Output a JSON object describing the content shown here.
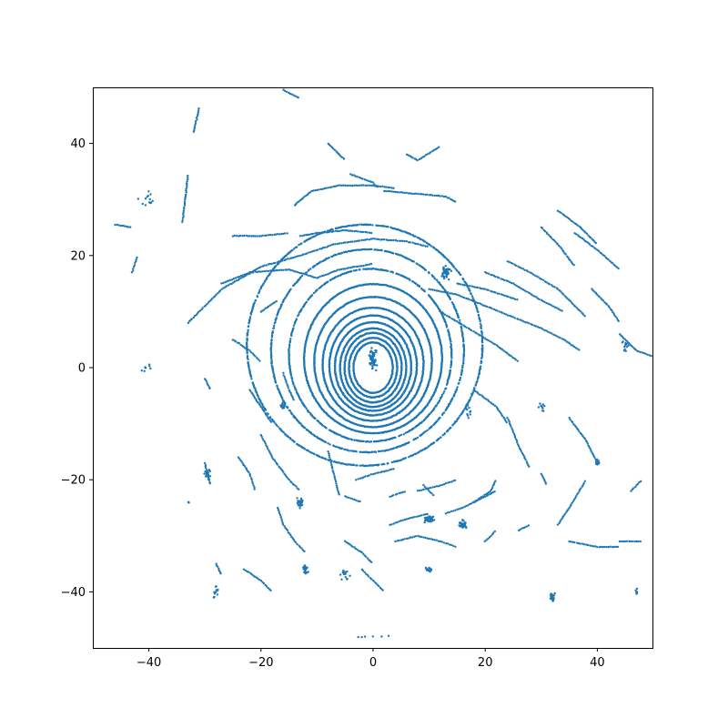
{
  "chart_data": {
    "type": "scatter",
    "title": "",
    "xlabel": "",
    "ylabel": "",
    "xlim": [
      -50,
      50
    ],
    "ylim": [
      -50,
      50
    ],
    "xticks": [
      -40,
      -20,
      0,
      20,
      40
    ],
    "yticks": [
      -40,
      -20,
      0,
      20,
      40
    ],
    "xtick_labels": [
      "−40",
      "−20",
      "0",
      "20",
      "40"
    ],
    "ytick_labels": [
      "−40",
      "−20",
      "0",
      "20",
      "40"
    ],
    "grid": false,
    "legend": "none",
    "marker_color": "#1f77b4",
    "series": [
      {
        "rings": [
          {
            "cx": 0,
            "cy": 0,
            "rx": 3.5,
            "ry": 4.5
          },
          {
            "cx": 0,
            "cy": 0,
            "rx": 4.3,
            "ry": 5.3
          },
          {
            "cx": 0,
            "cy": 0,
            "rx": 5.1,
            "ry": 6.2
          },
          {
            "cx": 0,
            "cy": 0,
            "rx": 5.9,
            "ry": 7.0
          },
          {
            "cx": 0,
            "cy": 0.2,
            "rx": 6.8,
            "ry": 7.9
          },
          {
            "cx": 0,
            "cy": 0.4,
            "rx": 7.8,
            "ry": 8.9
          },
          {
            "cx": 0,
            "cy": 0.6,
            "rx": 9.0,
            "ry": 10.1
          },
          {
            "cx": 0,
            "cy": 1.0,
            "rx": 10.5,
            "ry": 11.6
          },
          {
            "cx": 0,
            "cy": 1.6,
            "rx": 12.3,
            "ry": 13.3
          },
          {
            "cx": -0.5,
            "cy": 2.2,
            "rx": 14.5,
            "ry": 15.4
          },
          {
            "cx": -1.0,
            "cy": 3.0,
            "rx": 17.2,
            "ry": 18.1
          },
          {
            "cx": -1.5,
            "cy": 4.0,
            "rx": 21.0,
            "ry": 21.5
          }
        ],
        "segments": [
          [
            [
              -33,
              8
            ],
            [
              -27,
              14
            ],
            [
              -20,
              18
            ],
            [
              -13,
              20
            ],
            [
              -7,
              22
            ],
            [
              0,
              23
            ],
            [
              6,
              22.5
            ],
            [
              10,
              21.5
            ]
          ],
          [
            [
              -27,
              15
            ],
            [
              -22,
              17
            ],
            [
              -15,
              17.5
            ],
            [
              -10,
              16
            ],
            [
              -6,
              17.5
            ],
            [
              0,
              18.5
            ]
          ],
          [
            [
              -13,
              23.5
            ],
            [
              -10,
              24
            ],
            [
              -5,
              24.5
            ],
            [
              0,
              24
            ]
          ],
          [
            [
              -25,
              23.5
            ],
            [
              -20,
              23.5
            ],
            [
              -15,
              24
            ]
          ],
          [
            [
              -14,
              29
            ],
            [
              -11,
              31.5
            ],
            [
              -6,
              32.5
            ],
            [
              0,
              32.5
            ],
            [
              4,
              32
            ]
          ],
          [
            [
              2,
              31.5
            ],
            [
              8,
              31
            ],
            [
              13,
              30.5
            ],
            [
              15,
              29.5
            ]
          ],
          [
            [
              -4,
              34.5
            ],
            [
              0,
              33
            ],
            [
              1,
              32
            ]
          ],
          [
            [
              -8,
              40
            ],
            [
              -5,
              37
            ]
          ],
          [
            [
              -16,
              49.5
            ],
            [
              -13,
              48
            ]
          ],
          [
            [
              6,
              38
            ],
            [
              8,
              37
            ],
            [
              12,
              39.5
            ]
          ],
          [
            [
              10,
              14
            ],
            [
              15,
              13
            ],
            [
              20,
              11
            ],
            [
              25,
              9
            ],
            [
              30,
              7
            ],
            [
              34,
              5
            ],
            [
              37,
              3
            ]
          ],
          [
            [
              12,
              10
            ],
            [
              17,
              7
            ],
            [
              22,
              4
            ],
            [
              26,
              1
            ]
          ],
          [
            [
              15,
              15
            ],
            [
              20,
              14
            ],
            [
              26,
              12
            ]
          ],
          [
            [
              20,
              17
            ],
            [
              25,
              15
            ],
            [
              30,
              12
            ],
            [
              34,
              10
            ]
          ],
          [
            [
              24,
              19
            ],
            [
              28,
              17
            ],
            [
              33,
              14
            ],
            [
              38,
              9
            ]
          ],
          [
            [
              30,
              25
            ],
            [
              33,
              22
            ],
            [
              36,
              18
            ]
          ],
          [
            [
              33,
              28
            ],
            [
              37,
              25
            ],
            [
              40,
              22
            ]
          ],
          [
            [
              36,
              24
            ],
            [
              40,
              21
            ],
            [
              44,
              17.5
            ]
          ],
          [
            [
              39,
              14
            ],
            [
              42,
              11
            ],
            [
              44,
              8
            ]
          ],
          [
            [
              44,
              6
            ],
            [
              47,
              3
            ],
            [
              50,
              2
            ]
          ],
          [
            [
              -43,
              17
            ],
            [
              -42,
              20
            ]
          ],
          [
            [
              -32,
              42
            ],
            [
              -31,
              46.5
            ]
          ],
          [
            [
              -34,
              26
            ],
            [
              -33,
              34.5
            ]
          ],
          [
            [
              -46,
              25.5
            ],
            [
              -43,
              25
            ]
          ],
          [
            [
              -20,
              10
            ],
            [
              -17,
              12
            ]
          ],
          [
            [
              -25,
              5
            ],
            [
              -22,
              3
            ],
            [
              -20,
              1
            ]
          ],
          [
            [
              -22,
              -4
            ],
            [
              -20,
              -7
            ],
            [
              -18,
              -10
            ]
          ],
          [
            [
              -20,
              -12
            ],
            [
              -18,
              -16
            ],
            [
              -15,
              -20
            ],
            [
              -13,
              -22
            ]
          ],
          [
            [
              -24,
              -16
            ],
            [
              -22,
              -19
            ],
            [
              -21,
              -22
            ]
          ],
          [
            [
              -30,
              -17
            ],
            [
              -29,
              -21
            ]
          ],
          [
            [
              -28,
              -35
            ],
            [
              -27,
              -37
            ]
          ],
          [
            [
              -23,
              -36
            ],
            [
              -20,
              -38
            ],
            [
              -18,
              -40
            ]
          ],
          [
            [
              -17,
              -25
            ],
            [
              -16,
              -28
            ],
            [
              -14,
              -31
            ]
          ],
          [
            [
              -14,
              -31
            ],
            [
              -12,
              -33
            ]
          ],
          [
            [
              -8,
              -15
            ],
            [
              -7,
              -19
            ],
            [
              -6,
              -23
            ]
          ],
          [
            [
              -3,
              -20
            ],
            [
              0,
              -19
            ],
            [
              4,
              -18
            ]
          ],
          [
            [
              -5,
              -23
            ],
            [
              -2,
              -24
            ]
          ],
          [
            [
              3,
              -23
            ],
            [
              6,
              -22
            ]
          ],
          [
            [
              3,
              -28
            ],
            [
              6,
              -27
            ],
            [
              10,
              -26
            ]
          ],
          [
            [
              4,
              -31
            ],
            [
              8,
              -30
            ],
            [
              12,
              -31
            ],
            [
              15,
              -32
            ]
          ],
          [
            [
              8,
              -22
            ],
            [
              12,
              -21
            ],
            [
              15,
              -20
            ]
          ],
          [
            [
              13,
              -26
            ],
            [
              16,
              -25
            ],
            [
              20,
              -23
            ],
            [
              22,
              -22
            ]
          ],
          [
            [
              18,
              -24
            ],
            [
              21,
              -22
            ],
            [
              22,
              -20
            ]
          ],
          [
            [
              20,
              -31
            ],
            [
              22,
              -29
            ]
          ],
          [
            [
              26,
              -29
            ],
            [
              28,
              -28
            ]
          ],
          [
            [
              33,
              -28
            ],
            [
              35,
              -25
            ],
            [
              38,
              -20
            ]
          ],
          [
            [
              35,
              -31
            ],
            [
              40,
              -32
            ],
            [
              44,
              -32
            ]
          ],
          [
            [
              44,
              -31
            ],
            [
              48,
              -31
            ]
          ],
          [
            [
              24,
              -9
            ],
            [
              26,
              -14
            ],
            [
              28,
              -18
            ]
          ],
          [
            [
              30,
              -19
            ],
            [
              31,
              -21
            ]
          ],
          [
            [
              35,
              -9
            ],
            [
              38,
              -13
            ],
            [
              40,
              -17
            ]
          ],
          [
            [
              46,
              -22
            ],
            [
              48,
              -20
            ]
          ],
          [
            [
              18,
              -4
            ],
            [
              22,
              -7
            ],
            [
              24,
              -10
            ]
          ],
          [
            [
              9,
              -21
            ],
            [
              11,
              -23
            ]
          ],
          [
            [
              -5,
              -31
            ],
            [
              -2,
              -33
            ],
            [
              0,
              -35
            ]
          ],
          [
            [
              -2,
              -36
            ],
            [
              0,
              -38
            ],
            [
              2,
              -40
            ]
          ],
          [
            [
              -30,
              -2
            ],
            [
              -29,
              -4
            ]
          ],
          [
            [
              -16,
              -1
            ],
            [
              -15,
              -4
            ],
            [
              -14,
              -6
            ]
          ]
        ],
        "clusters": [
          {
            "x": 10,
            "y": -27,
            "sx": 2,
            "sy": 1.2,
            "n": 40
          },
          {
            "x": 16,
            "y": -28,
            "sx": 1.2,
            "sy": 1.5,
            "n": 40
          },
          {
            "x": -13,
            "y": -24,
            "sx": 1,
            "sy": 2,
            "n": 30
          },
          {
            "x": -12,
            "y": -36,
            "sx": 1,
            "sy": 2,
            "n": 24
          },
          {
            "x": 10,
            "y": -36,
            "sx": 1,
            "sy": 0.8,
            "n": 16
          },
          {
            "x": 32,
            "y": -41,
            "sx": 0.8,
            "sy": 2,
            "n": 22
          },
          {
            "x": 47,
            "y": -40,
            "sx": 0.3,
            "sy": 1,
            "n": 8
          },
          {
            "x": -29.5,
            "y": -19,
            "sx": 1,
            "sy": 2,
            "n": 22
          },
          {
            "x": 13,
            "y": 17,
            "sx": 1.5,
            "sy": 2.5,
            "n": 40
          },
          {
            "x": -16,
            "y": -7,
            "sx": 1,
            "sy": 1.5,
            "n": 14
          },
          {
            "x": 40,
            "y": -17,
            "sx": 1,
            "sy": 1.2,
            "n": 12
          },
          {
            "x": 45,
            "y": 4,
            "sx": 1.3,
            "sy": 2,
            "n": 14
          },
          {
            "x": 17,
            "y": -8,
            "sx": 1,
            "sy": 2,
            "n": 10
          },
          {
            "x": 30,
            "y": -7,
            "sx": 1.5,
            "sy": 1.5,
            "n": 10
          },
          {
            "x": -28,
            "y": -40,
            "sx": 1,
            "sy": 2.5,
            "n": 12
          },
          {
            "x": -5,
            "y": -37,
            "sx": 1.5,
            "sy": 2,
            "n": 14
          },
          {
            "x": -33,
            "y": -24,
            "sx": 0.5,
            "sy": 0.5,
            "n": 4
          },
          {
            "x": -40,
            "y": 0,
            "sx": 3,
            "sy": 2,
            "n": 8
          },
          {
            "x": -40,
            "y": 30,
            "sx": 3,
            "sy": 3,
            "n": 14
          },
          {
            "x": 0,
            "y": 1.5,
            "sx": 1.3,
            "sy": 3.5,
            "n": 60
          },
          {
            "x": 0,
            "y": -48,
            "sx": 10,
            "sy": 0.5,
            "n": 6
          }
        ]
      }
    ]
  }
}
